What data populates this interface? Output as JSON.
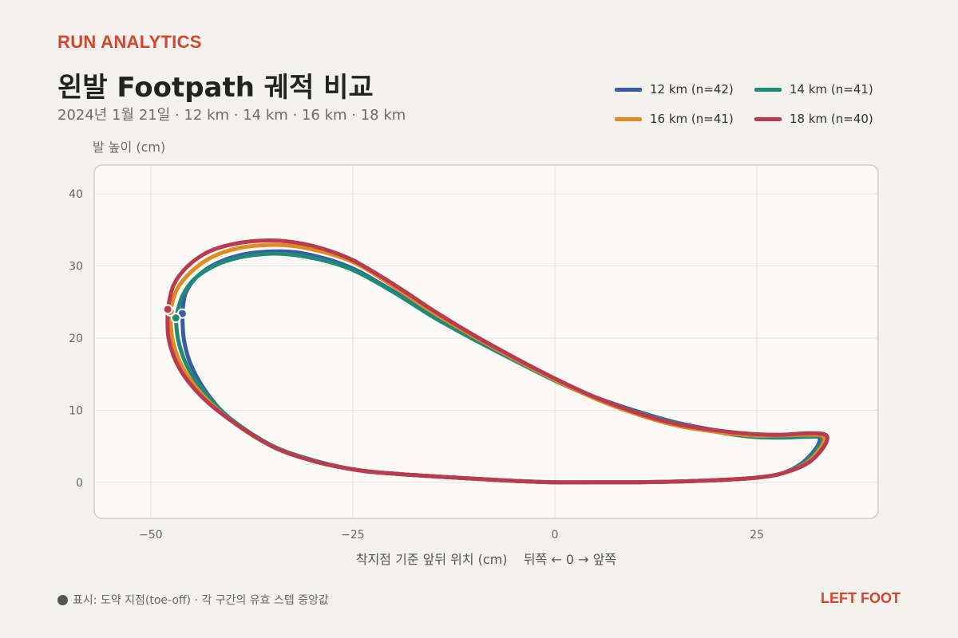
{
  "header": {
    "kicker": "RUN ANALYTICS",
    "title": "왼발 Footpath 궤적 비교",
    "subtitle": "2024년 1월 21일 · 12 km · 14 km · 16 km · 18 km"
  },
  "footer": {
    "note": "표시: 도약 지점(toe-off) · 각 구간의 유효 스텝 중앙값",
    "tag": "LEFT FOOT"
  },
  "colors": {
    "background": "#f4f2ed",
    "plot_background": "#fbfaf6",
    "accent": "#d4452f"
  },
  "chart_data": {
    "type": "line",
    "title": "",
    "xlabel": "착지점 기준 앞뒤 위치 (cm)    뒤쪽 ← 0 → 앞쪽",
    "ylabel": "발 높이 (cm)",
    "xlim": [
      -57,
      40
    ],
    "ylim": [
      -5,
      44
    ],
    "xticks": [
      -50,
      -25,
      0,
      25
    ],
    "xtick_labels": [
      "−50",
      "−25",
      "0",
      "25"
    ],
    "yticks": [
      0,
      10,
      20,
      30,
      40
    ],
    "ytick_labels": [
      "0",
      "10",
      "20",
      "30",
      "40"
    ],
    "grid": true,
    "legend_position": "top-right",
    "marker_meaning": "toe-off",
    "series": [
      {
        "name": "12 km  (n=42)",
        "color": "#3b5ba5",
        "toe_off": [
          -46.1,
          23.4
        ],
        "x": [
          -46.1,
          -45.7,
          -44.3,
          -42.0,
          -39.0,
          -35.5,
          -32.0,
          -28.0,
          -24.5,
          -20.0,
          -15.0,
          -10.0,
          -5.0,
          0.0,
          5.0,
          10.0,
          15.0,
          20.0,
          24.5,
          28.0,
          31.0,
          32.7,
          32.3,
          30.5,
          28.0,
          24.5,
          20.0,
          15.0,
          10.0,
          5.0,
          0.0,
          -5.0,
          -10.0,
          -20.0,
          -25.0,
          -30.0,
          -35.0,
          -40.0,
          -43.0,
          -45.0,
          -45.9,
          -46.1
        ],
        "y": [
          23.4,
          26.2,
          28.5,
          30.3,
          31.5,
          32.0,
          31.9,
          30.9,
          29.4,
          26.5,
          23.1,
          20.0,
          17.0,
          14.2,
          11.8,
          9.9,
          8.3,
          7.2,
          6.5,
          6.4,
          6.4,
          6.2,
          4.7,
          2.6,
          1.2,
          0.6,
          0.3,
          0.1,
          0.0,
          0.0,
          0.0,
          0.2,
          0.5,
          1.2,
          1.8,
          3.0,
          5.0,
          8.6,
          12.3,
          16.2,
          19.8,
          23.4
        ]
      },
      {
        "name": "14 km  (n=41)",
        "color": "#1f8a78",
        "toe_off": [
          -46.9,
          22.8
        ],
        "x": [
          -46.9,
          -46.1,
          -44.6,
          -42.0,
          -39.0,
          -35.5,
          -32.0,
          -28.0,
          -24.5,
          -20.0,
          -15.0,
          -10.0,
          -5.0,
          0.0,
          5.0,
          10.0,
          15.0,
          20.0,
          24.5,
          28.0,
          31.0,
          33.0,
          32.6,
          30.8,
          28.0,
          24.5,
          20.0,
          15.0,
          10.0,
          5.0,
          0.0,
          -5.0,
          -10.0,
          -20.0,
          -25.0,
          -30.0,
          -35.0,
          -40.0,
          -43.3,
          -45.5,
          -46.6,
          -46.9
        ],
        "y": [
          22.8,
          25.8,
          28.2,
          30.1,
          31.2,
          31.7,
          31.5,
          30.6,
          29.2,
          26.4,
          22.9,
          19.8,
          16.9,
          14.1,
          11.7,
          9.8,
          8.2,
          7.0,
          6.3,
          6.2,
          6.3,
          6.2,
          4.8,
          2.7,
          1.2,
          0.6,
          0.3,
          0.1,
          0.0,
          0.0,
          0.0,
          0.2,
          0.5,
          1.2,
          1.8,
          3.1,
          5.1,
          8.7,
          12.4,
          16.1,
          19.7,
          22.8
        ]
      },
      {
        "name": "16 km  (n=41)",
        "color": "#e08a22",
        "toe_off": [
          -47.6,
          23.7
        ],
        "x": [
          -47.6,
          -46.8,
          -45.0,
          -42.5,
          -39.5,
          -36.0,
          -32.5,
          -28.5,
          -24.5,
          -20.0,
          -15.0,
          -10.0,
          -5.0,
          0.0,
          5.0,
          10.0,
          15.0,
          20.0,
          24.5,
          28.0,
          31.0,
          33.2,
          32.9,
          31.0,
          28.0,
          24.5,
          20.0,
          15.0,
          10.0,
          5.0,
          0.0,
          -5.0,
          -10.0,
          -20.0,
          -25.0,
          -30.0,
          -35.0,
          -40.0,
          -43.5,
          -46.0,
          -47.3,
          -47.6
        ],
        "y": [
          23.7,
          26.7,
          29.2,
          31.2,
          32.4,
          32.9,
          32.8,
          31.9,
          30.3,
          27.2,
          23.5,
          20.2,
          17.1,
          14.2,
          11.6,
          9.5,
          7.9,
          7.0,
          6.5,
          6.5,
          6.6,
          6.4,
          4.8,
          2.6,
          1.2,
          0.6,
          0.3,
          0.1,
          0.0,
          0.0,
          0.0,
          0.2,
          0.5,
          1.2,
          1.8,
          3.0,
          5.0,
          8.5,
          12.0,
          15.8,
          19.7,
          23.7
        ]
      },
      {
        "name": "18 km  (n=40)",
        "color": "#b93b50",
        "toe_off": [
          -47.9,
          24.0
        ],
        "x": [
          -47.9,
          -47.2,
          -45.5,
          -43.0,
          -40.0,
          -36.5,
          -33.0,
          -29.0,
          -25.0,
          -20.0,
          -15.0,
          -10.0,
          -5.0,
          0.0,
          5.0,
          10.0,
          15.0,
          20.0,
          24.5,
          28.0,
          31.5,
          33.6,
          33.2,
          31.2,
          28.0,
          24.5,
          20.0,
          15.0,
          10.0,
          5.0,
          0.0,
          -5.0,
          -10.0,
          -20.0,
          -25.0,
          -30.0,
          -35.0,
          -40.0,
          -43.8,
          -46.5,
          -47.8,
          -47.9
        ],
        "y": [
          24.0,
          27.3,
          29.9,
          31.9,
          33.0,
          33.5,
          33.4,
          32.5,
          30.8,
          27.5,
          23.8,
          20.4,
          17.3,
          14.4,
          11.8,
          9.7,
          8.1,
          7.2,
          6.7,
          6.6,
          6.8,
          6.5,
          4.8,
          2.6,
          1.2,
          0.6,
          0.3,
          0.1,
          0.0,
          0.0,
          0.0,
          0.2,
          0.5,
          1.2,
          1.8,
          3.0,
          5.0,
          8.5,
          12.0,
          15.9,
          20.0,
          24.0
        ]
      }
    ]
  }
}
